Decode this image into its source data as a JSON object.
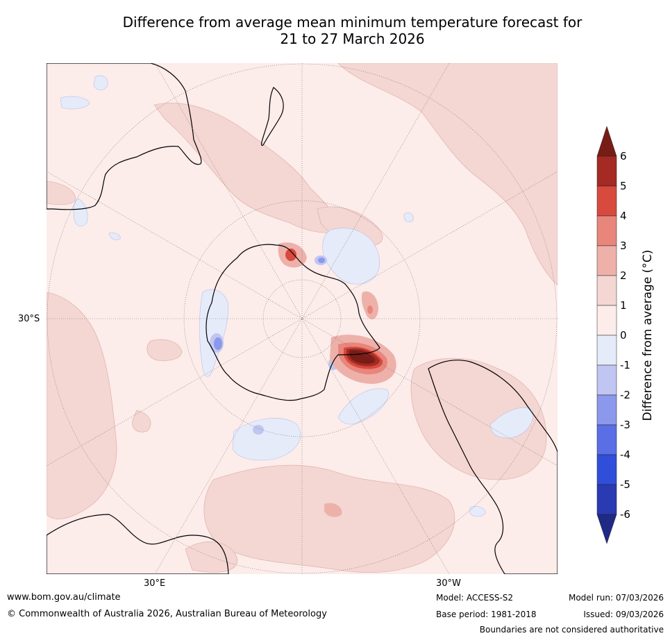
{
  "title": {
    "line1": "Difference from average mean minimum temperature forecast for",
    "line2": "21 to 27 March 2026"
  },
  "map": {
    "projection": "south-polar-stereographic",
    "labels": {
      "lat_30s": "30°S",
      "lon_30e": "30°E",
      "lon_30w": "30°W"
    }
  },
  "colorbar": {
    "label": "Difference from average (°C)",
    "ticks": [
      "6",
      "5",
      "4",
      "3",
      "2",
      "1",
      "0",
      "-1",
      "-2",
      "-3",
      "-4",
      "-5",
      "-6"
    ],
    "levels": [
      {
        "range": "> 6",
        "color": "#781c16"
      },
      {
        "range": "5 to 6",
        "color": "#a42a23"
      },
      {
        "range": "4 to 5",
        "color": "#d84a3e"
      },
      {
        "range": "3 to 4",
        "color": "#e8867c"
      },
      {
        "range": "2 to 3",
        "color": "#edb1aa"
      },
      {
        "range": "1 to 2",
        "color": "#f4d6d2"
      },
      {
        "range": "0 to 1",
        "color": "#fcecea"
      },
      {
        "range": "-1 to 0",
        "color": "#e6ebfa"
      },
      {
        "range": "-2 to -1",
        "color": "#c0c6f1"
      },
      {
        "range": "-3 to -2",
        "color": "#8b98ec"
      },
      {
        "range": "-4 to -3",
        "color": "#5a6fe6"
      },
      {
        "range": "-5 to -4",
        "color": "#2f4fdb"
      },
      {
        "range": "-6 to -5",
        "color": "#2a3ab2"
      },
      {
        "range": "< -6",
        "color": "#1f2a86"
      }
    ]
  },
  "footer": {
    "url": "www.bom.gov.au/climate",
    "copyright": "© Commonwealth of Australia 2026, Australian Bureau of Meteorology",
    "model": "Model: ACCESS-S2",
    "base_period": "Base period: 1981-2018",
    "model_run": "Model run: 07/03/2026",
    "issued": "Issued: 09/03/2026",
    "disclaimer": "Boundaries are not considered authoritative"
  }
}
